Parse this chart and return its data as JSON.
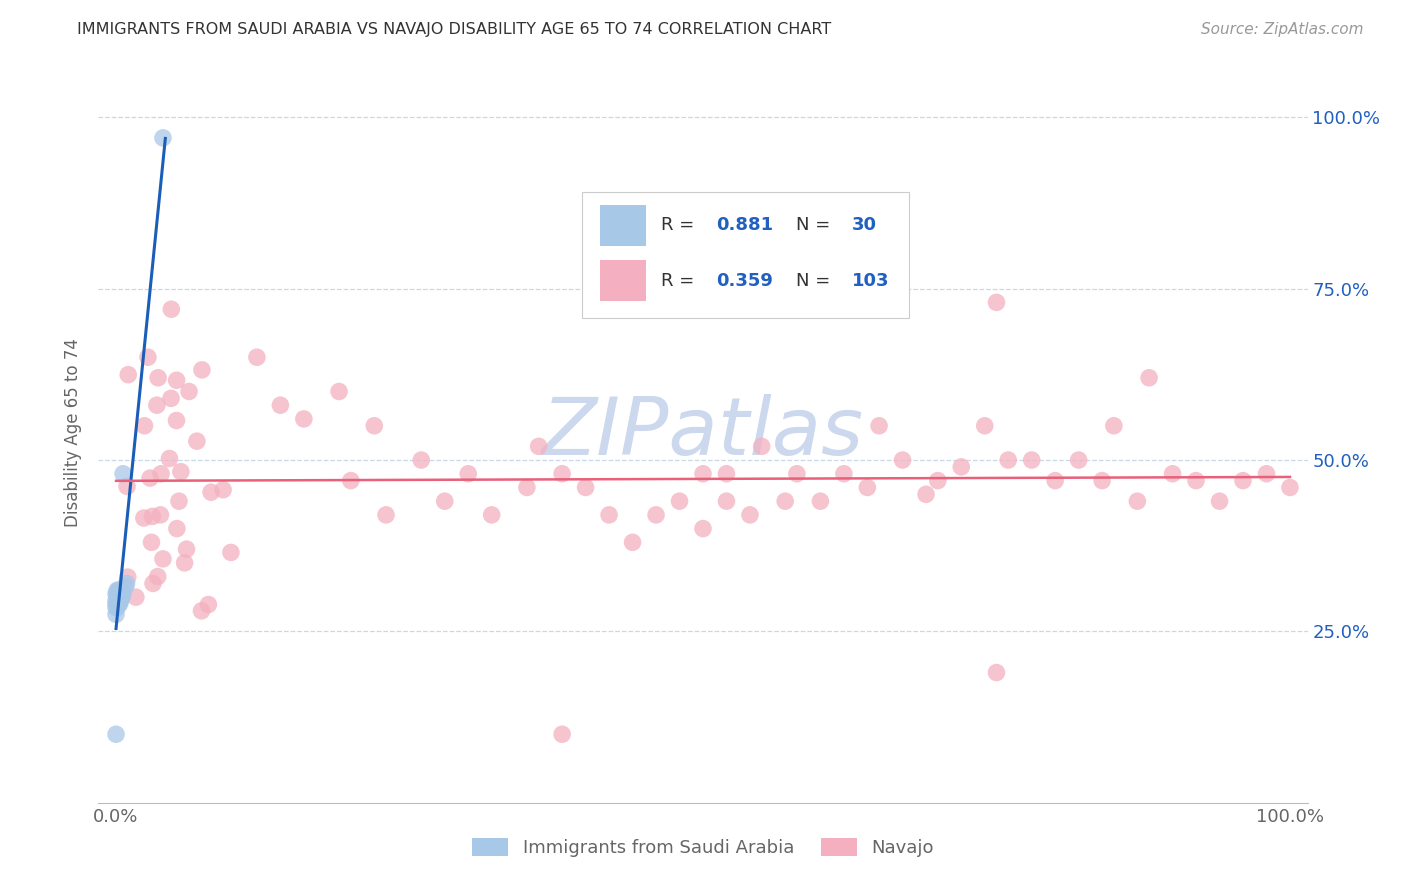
{
  "title": "IMMIGRANTS FROM SAUDI ARABIA VS NAVAJO DISABILITY AGE 65 TO 74 CORRELATION CHART",
  "source": "Source: ZipAtlas.com",
  "ylabel": "Disability Age 65 to 74",
  "R_blue": 0.881,
  "N_blue": 30,
  "R_pink": 0.359,
  "N_pink": 103,
  "blue_scatter_color": "#a8c8e8",
  "pink_scatter_color": "#f4b0c0",
  "blue_line_color": "#1a5eb8",
  "pink_line_color": "#e8607a",
  "background_color": "#ffffff",
  "grid_color": "#c8d8e8",
  "watermark_color": "#ccd8ee",
  "right_tick_color": "#2060c0",
  "title_color": "#333333",
  "source_color": "#999999",
  "label_color": "#666666",
  "legend_edge_color": "#cccccc"
}
